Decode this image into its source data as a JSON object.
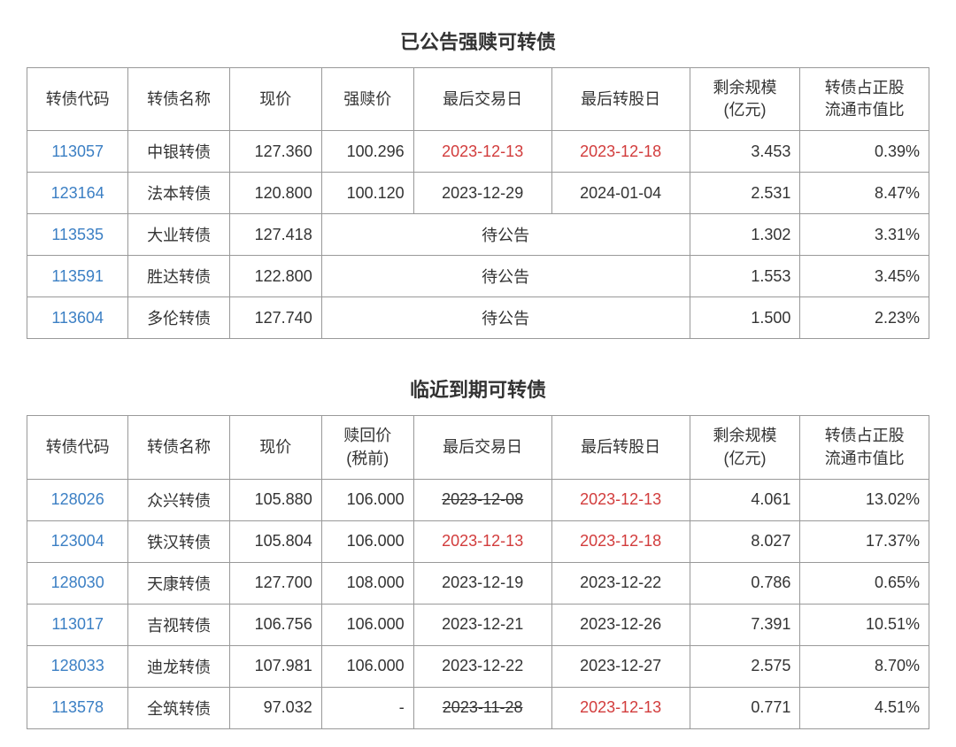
{
  "colors": {
    "background": "#ffffff",
    "text": "#333333",
    "border": "#999999",
    "link": "#3b7fc4",
    "red": "#d23c3c"
  },
  "fonts": {
    "title_size": 22,
    "cell_size": 18,
    "family": "Microsoft YaHei"
  },
  "table1": {
    "title": "已公告强赎可转债",
    "columns": [
      "转债代码",
      "转债名称",
      "现价",
      "强赎价",
      "最后交易日",
      "最后转股日",
      "剩余规模\n(亿元)",
      "转债占正股\n流通市值比"
    ],
    "col_classes": [
      "c-code",
      "c-name",
      "c-price",
      "c-red",
      "c-trade",
      "c-conv",
      "c-scale",
      "c-ratio"
    ],
    "rows": [
      {
        "code": "113057",
        "name": "中银转债",
        "price": "127.360",
        "redeem": "100.296",
        "trade": "2023-12-13",
        "trade_red": true,
        "conv": "2023-12-18",
        "conv_red": true,
        "scale": "3.453",
        "ratio": "0.39%"
      },
      {
        "code": "123164",
        "name": "法本转债",
        "price": "120.800",
        "redeem": "100.120",
        "trade": "2023-12-29",
        "trade_red": false,
        "conv": "2024-01-04",
        "conv_red": false,
        "scale": "2.531",
        "ratio": "8.47%"
      },
      {
        "code": "113535",
        "name": "大业转债",
        "price": "127.418",
        "merged": "待公告",
        "scale": "1.302",
        "ratio": "3.31%"
      },
      {
        "code": "113591",
        "name": "胜达转债",
        "price": "122.800",
        "merged": "待公告",
        "scale": "1.553",
        "ratio": "3.45%"
      },
      {
        "code": "113604",
        "name": "多伦转债",
        "price": "127.740",
        "merged": "待公告",
        "scale": "1.500",
        "ratio": "2.23%"
      }
    ]
  },
  "table2": {
    "title": "临近到期可转债",
    "columns": [
      "转债代码",
      "转债名称",
      "现价",
      "赎回价\n(税前)",
      "最后交易日",
      "最后转股日",
      "剩余规模\n(亿元)",
      "转债占正股\n流通市值比"
    ],
    "col_classes": [
      "c-code",
      "c-name",
      "c-price",
      "c-red",
      "c-trade",
      "c-conv",
      "c-scale",
      "c-ratio"
    ],
    "rows": [
      {
        "code": "128026",
        "name": "众兴转债",
        "price": "105.880",
        "redeem": "106.000",
        "trade": "2023-12-08",
        "trade_red": false,
        "trade_strike": true,
        "conv": "2023-12-13",
        "conv_red": true,
        "scale": "4.061",
        "ratio": "13.02%"
      },
      {
        "code": "123004",
        "name": "铁汉转债",
        "price": "105.804",
        "redeem": "106.000",
        "trade": "2023-12-13",
        "trade_red": true,
        "conv": "2023-12-18",
        "conv_red": true,
        "scale": "8.027",
        "ratio": "17.37%"
      },
      {
        "code": "128030",
        "name": "天康转债",
        "price": "127.700",
        "redeem": "108.000",
        "trade": "2023-12-19",
        "trade_red": false,
        "conv": "2023-12-22",
        "conv_red": false,
        "scale": "0.786",
        "ratio": "0.65%"
      },
      {
        "code": "113017",
        "name": "吉视转债",
        "price": "106.756",
        "redeem": "106.000",
        "trade": "2023-12-21",
        "trade_red": false,
        "conv": "2023-12-26",
        "conv_red": false,
        "scale": "7.391",
        "ratio": "10.51%"
      },
      {
        "code": "128033",
        "name": "迪龙转债",
        "price": "107.981",
        "redeem": "106.000",
        "trade": "2023-12-22",
        "trade_red": false,
        "conv": "2023-12-27",
        "conv_red": false,
        "scale": "2.575",
        "ratio": "8.70%"
      },
      {
        "code": "113578",
        "name": "全筑转债",
        "price": "97.032",
        "redeem": "-",
        "trade": "2023-11-28",
        "trade_red": false,
        "trade_strike": true,
        "conv": "2023-12-13",
        "conv_red": true,
        "scale": "0.771",
        "ratio": "4.51%"
      }
    ]
  }
}
